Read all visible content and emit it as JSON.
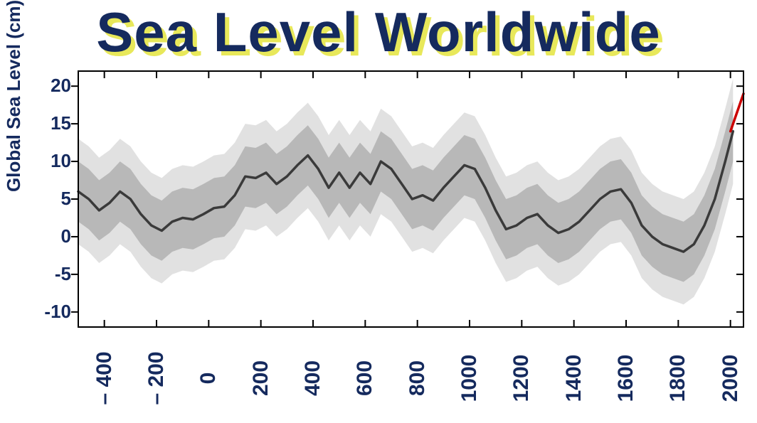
{
  "title": "Sea Level Worldwide",
  "ylabel": "Global Sea Level (cm)",
  "chart": {
    "type": "line",
    "background_color": "#ffffff",
    "axis_color": "#000000",
    "text_color": "#152a5e",
    "title_fontsize": 78,
    "label_fontsize": 26,
    "tick_fontsize": 26,
    "xtick_fontsize": 30,
    "xlim": [
      -500,
      2050
    ],
    "ylim": [
      -12,
      22
    ],
    "yticks": [
      -10,
      -5,
      0,
      5,
      10,
      15,
      20
    ],
    "ytick_labels": [
      "-10",
      "-5",
      "0",
      "5",
      "10",
      "15",
      "20"
    ],
    "xticks": [
      -400,
      -200,
      0,
      200,
      400,
      600,
      800,
      1000,
      1200,
      1400,
      1600,
      1800,
      2000
    ],
    "xtick_labels": [
      "– 400",
      "– 200",
      "0",
      "200",
      "400",
      "600",
      "800",
      "1000",
      "1200",
      "1400",
      "1600",
      "1800",
      "2000"
    ],
    "line_color": "#3a3a3a",
    "line_width": 3.5,
    "recent_line_color": "#cc0000",
    "recent_line_width": 3.5,
    "band_inner_color": "#b0b0b0",
    "band_inner_opacity": 0.85,
    "band_outer_color": "#dcdcdc",
    "band_outer_opacity": 0.85,
    "tick_length_major": 10,
    "series_x": [
      -500,
      -460,
      -420,
      -380,
      -340,
      -300,
      -260,
      -220,
      -180,
      -140,
      -100,
      -60,
      -20,
      20,
      60,
      100,
      140,
      180,
      220,
      260,
      300,
      340,
      380,
      420,
      460,
      500,
      540,
      580,
      620,
      660,
      700,
      740,
      780,
      820,
      860,
      900,
      940,
      980,
      1020,
      1060,
      1100,
      1140,
      1180,
      1220,
      1260,
      1300,
      1340,
      1380,
      1420,
      1460,
      1500,
      1540,
      1580,
      1620,
      1660,
      1700,
      1740,
      1780,
      1820,
      1860,
      1900,
      1940,
      1980,
      2010
    ],
    "series_y": [
      6.0,
      5.0,
      3.5,
      4.5,
      6.0,
      5.0,
      3.0,
      1.5,
      0.8,
      2.0,
      2.5,
      2.3,
      3.0,
      3.8,
      4.0,
      5.5,
      8.0,
      7.8,
      8.5,
      7.0,
      8.0,
      9.5,
      10.8,
      9.0,
      6.5,
      8.5,
      6.5,
      8.5,
      7.0,
      10.0,
      9.0,
      7.0,
      5.0,
      5.5,
      4.8,
      6.5,
      8.0,
      9.5,
      9.0,
      6.5,
      3.5,
      1.0,
      1.5,
      2.5,
      3.0,
      1.5,
      0.5,
      1.0,
      2.0,
      3.5,
      5.0,
      6.0,
      6.3,
      4.5,
      1.5,
      0.0,
      -1.0,
      -1.5,
      -2.0,
      -1.0,
      1.5,
      5.0,
      10.0,
      14.0
    ],
    "band_inner_half": 4.0,
    "band_outer_half": 7.0,
    "recent_x": [
      2000,
      2050
    ],
    "recent_y": [
      14.0,
      19.0
    ]
  }
}
